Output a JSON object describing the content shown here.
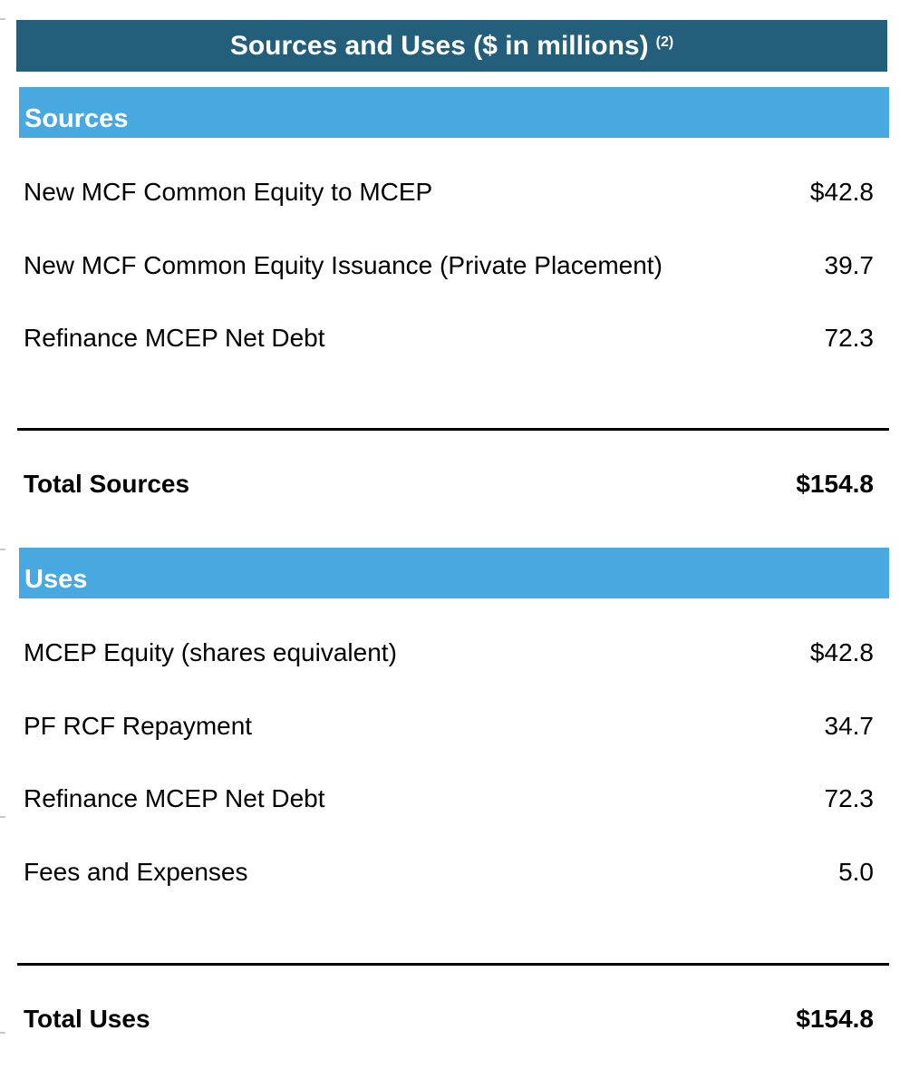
{
  "title": {
    "text": "Sources and Uses ($ in millions)",
    "footnote": "(2)"
  },
  "sources": {
    "header": "Sources",
    "rows": [
      {
        "label": "New MCF Common Equity to MCEP",
        "value": "$42.8"
      },
      {
        "label": "New MCF Common Equity Issuance (Private Placement)",
        "value": "39.7"
      },
      {
        "label": "Refinance MCEP Net Debt",
        "value": "72.3"
      }
    ],
    "total": {
      "label": "Total Sources",
      "value": "$154.8"
    }
  },
  "uses": {
    "header": "Uses",
    "rows": [
      {
        "label": "MCEP Equity (shares equivalent)",
        "value": "$42.8"
      },
      {
        "label": "PF RCF Repayment",
        "value": "34.7"
      },
      {
        "label": "Refinance MCEP Net Debt",
        "value": "72.3"
      },
      {
        "label": "Fees and Expenses",
        "value": "5.0"
      }
    ],
    "total": {
      "label": "Total Uses",
      "value": "$154.8"
    }
  },
  "colors": {
    "title_background": "#235e7b",
    "section_background": "#47a9e0",
    "header_text": "#ffffff",
    "body_text": "#000000"
  }
}
